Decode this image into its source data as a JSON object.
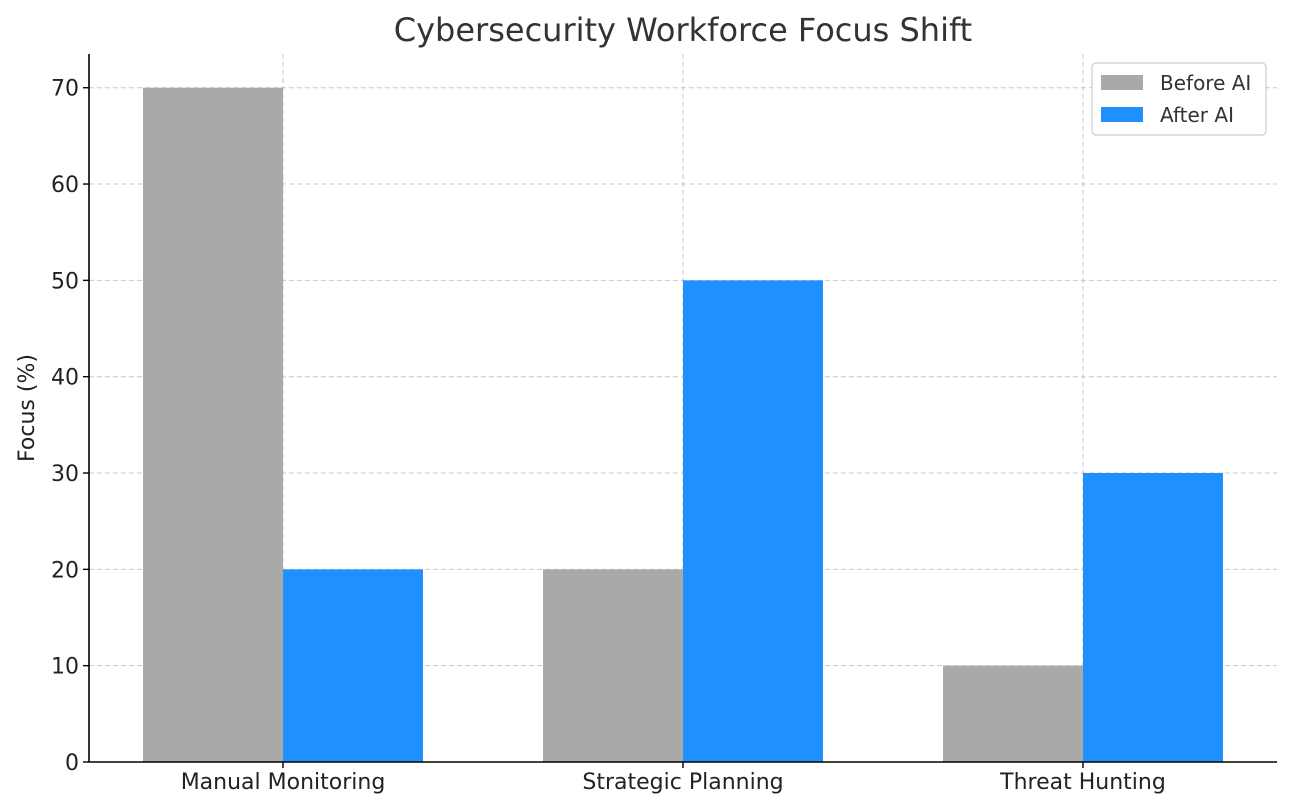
{
  "chart_data": {
    "type": "bar",
    "title": "Cybersecurity Workforce Focus Shift",
    "xlabel": "",
    "ylabel": "Focus (%)",
    "categories": [
      "Manual Monitoring",
      "Strategic Planning",
      "Threat Hunting"
    ],
    "series": [
      {
        "name": "Before AI",
        "values": [
          70,
          20,
          10
        ],
        "color": "#A9A9A9"
      },
      {
        "name": "After AI",
        "values": [
          20,
          50,
          30
        ],
        "color": "#1E90FF"
      }
    ],
    "ylim": [
      0,
      73.5
    ],
    "yticks": [
      0,
      10,
      20,
      30,
      40,
      50,
      60,
      70
    ],
    "grid": true,
    "legend_position": "top-right"
  }
}
